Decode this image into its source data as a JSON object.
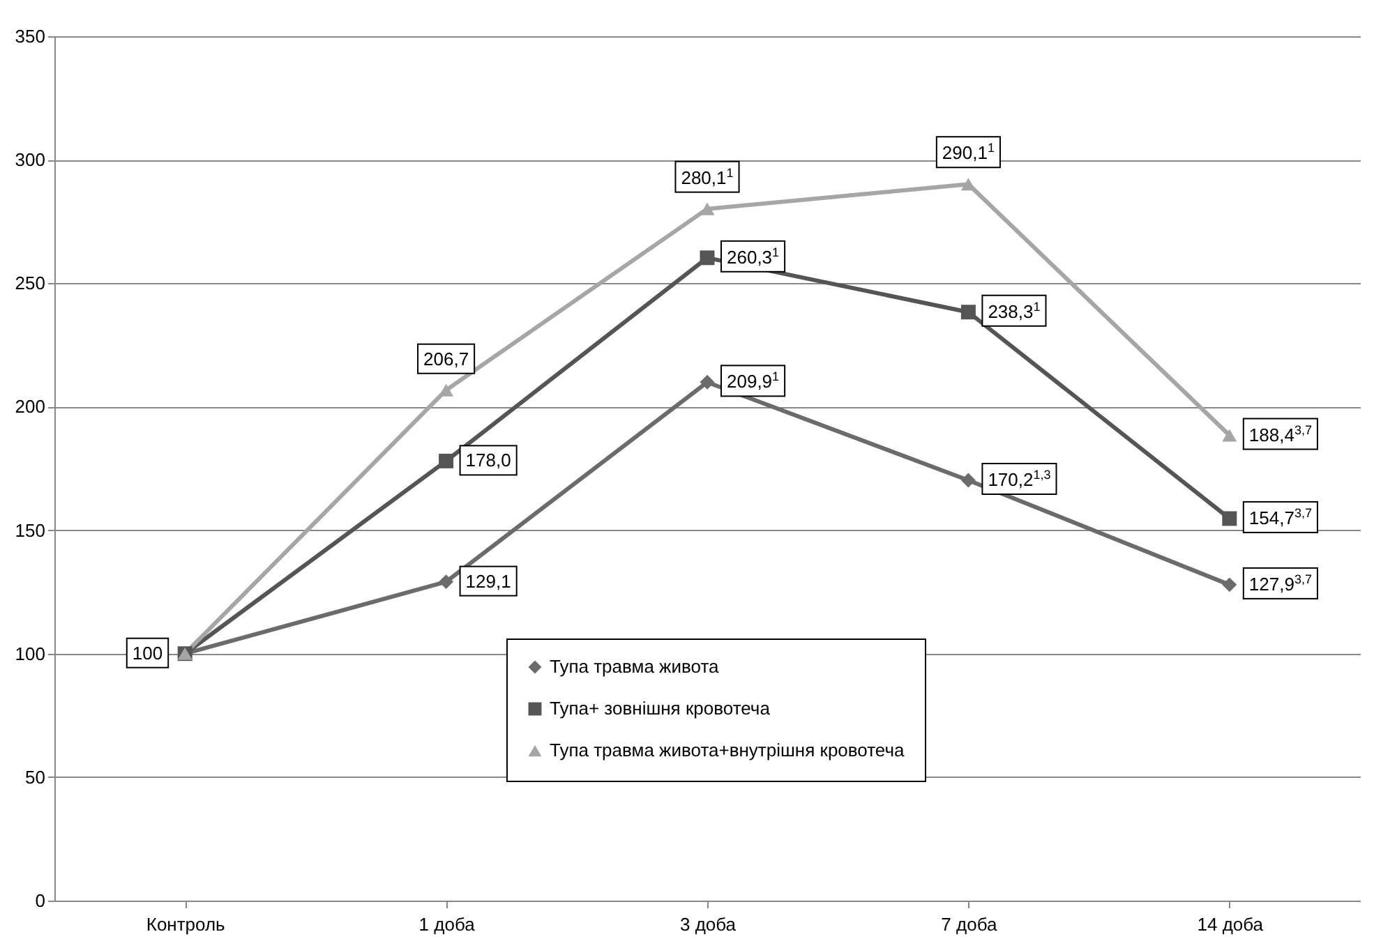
{
  "chart_data": {
    "type": "line",
    "categories": [
      "Контроль",
      "1 доба",
      "3 доба",
      "7 доба",
      "14 доба"
    ],
    "ylim": [
      0,
      350
    ],
    "yticks": [
      0,
      50,
      100,
      150,
      200,
      250,
      300,
      350
    ],
    "grid": "y",
    "legend": "bottom right",
    "line_style": "solid",
    "series": [
      {
        "name": "Тупа травма живота",
        "color": "#6b6b6b",
        "marker": "diamond",
        "values": [
          100,
          129.1,
          209.9,
          170.2,
          127.9
        ],
        "value_labels": [
          "100",
          "129,1",
          "209,9$^{1}$",
          "170,2$^{1,3}$",
          "127,9$^{3,7}$"
        ]
      },
      {
        "name": "Тупа+ зовнішня кровотеча",
        "color": "#555555",
        "marker": "square",
        "values": [
          100,
          178.0,
          260.3,
          238.3,
          154.7
        ],
        "value_labels": [
          null,
          "178,0",
          "260,3$^{1}$",
          "238,3$^{1}$",
          "154,7$^{3,7}$"
        ]
      },
      {
        "name": "Тупа травма живота+внутрішня кровотеча",
        "color": "#a6a6a6",
        "marker": "triangle",
        "values": [
          100,
          206.7,
          280.1,
          290.1,
          188.4
        ],
        "value_labels": [
          null,
          "206,7",
          "280,1$^{1}$",
          "290,1$^{1}$",
          "188,4$^{3,7}$"
        ]
      }
    ]
  }
}
